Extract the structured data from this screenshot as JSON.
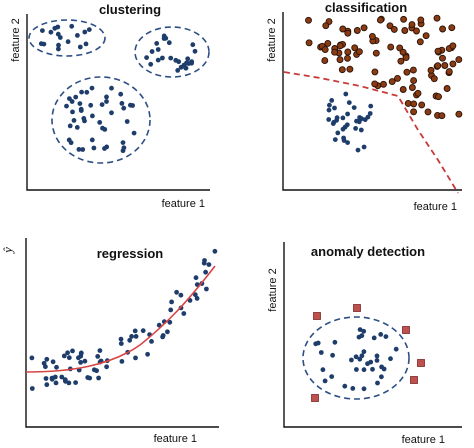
{
  "colors": {
    "point_blue": "#1f3d6b",
    "ellipse_blue": "#2d4f86",
    "point_brown": "#8a3b12",
    "point_brown_stroke": "#2a1208",
    "boundary_red": "#c83a3a",
    "curve_red": "#d84545",
    "anomaly_red": "#c0504d",
    "axis": "#111111"
  },
  "panels": {
    "clustering": {
      "title": "clustering",
      "x_label": "feature 1",
      "y_label": "feature 2"
    },
    "classification": {
      "title": "classification",
      "x_label": "feature 1",
      "y_label": "feature 2"
    },
    "regression": {
      "title": "regression",
      "x_label": "feature 1",
      "y_label": "ŷ"
    },
    "anomaly": {
      "title": "anomaly detection",
      "x_label": "feature 1",
      "y_label": "feature 2"
    }
  }
}
